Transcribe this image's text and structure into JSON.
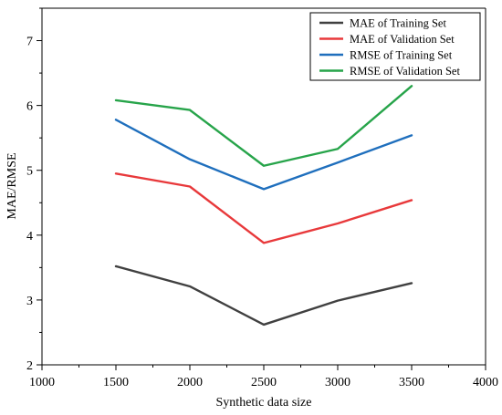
{
  "chart_data": {
    "type": "line",
    "title": "",
    "xlabel": "Synthetic data size",
    "ylabel": "MAE/RMSE",
    "xlim": [
      1000,
      4000
    ],
    "ylim": [
      2,
      7.5
    ],
    "x_ticks": [
      1000,
      1500,
      2000,
      2500,
      3000,
      3500,
      4000
    ],
    "y_ticks": [
      2,
      3,
      4,
      5,
      6,
      7
    ],
    "x": [
      1500,
      2000,
      2500,
      3000,
      3500
    ],
    "series": [
      {
        "name": "MAE of Training Set",
        "color": "#404040",
        "values": [
          3.52,
          3.21,
          2.62,
          2.99,
          3.26
        ]
      },
      {
        "name": "MAE of Validation Set",
        "color": "#e8393b",
        "values": [
          4.95,
          4.75,
          3.88,
          4.18,
          4.54
        ]
      },
      {
        "name": "RMSE of Training Set",
        "color": "#1f6fbd",
        "values": [
          5.78,
          5.17,
          4.71,
          5.12,
          5.54
        ]
      },
      {
        "name": "RMSE of Validation Set",
        "color": "#27a44a",
        "values": [
          6.08,
          5.93,
          5.07,
          5.33,
          6.3
        ]
      }
    ],
    "grid": false,
    "legend_position": "top-right"
  }
}
